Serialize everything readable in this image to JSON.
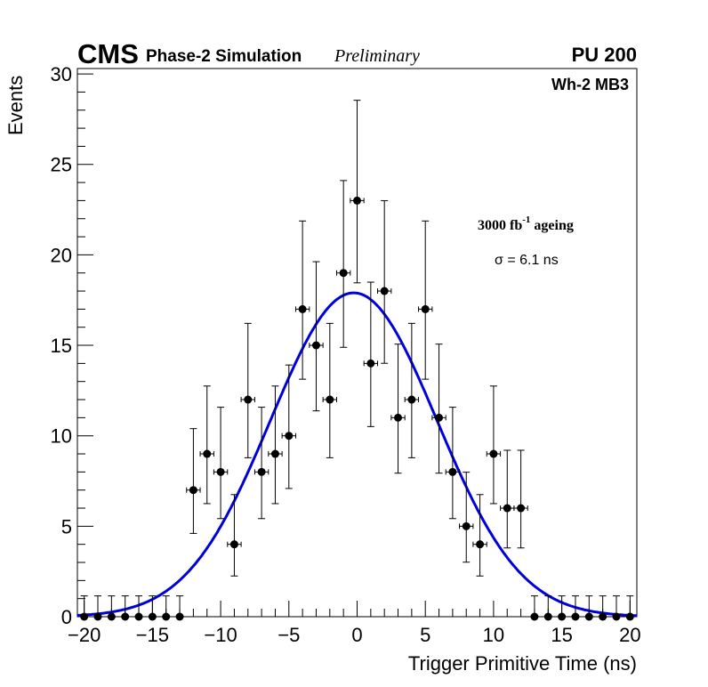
{
  "chart_data": {
    "type": "scatter",
    "title": "",
    "xlabel": "Trigger Primitive Time (ns)",
    "ylabel": "Events",
    "xlim": [
      -20.5,
      20.5
    ],
    "ylim": [
      0,
      30.3
    ],
    "x_ticks": [
      "−20",
      "−15",
      "−10",
      "−5",
      "0",
      "5",
      "10",
      "15",
      "20"
    ],
    "x_tick_values": [
      -20,
      -15,
      -10,
      -5,
      0,
      5,
      10,
      15,
      20
    ],
    "y_ticks": [
      "0",
      "5",
      "10",
      "15",
      "20",
      "25",
      "30"
    ],
    "y_tick_values": [
      0,
      5,
      10,
      15,
      20,
      25,
      30
    ],
    "grid": false,
    "series": [
      {
        "name": "data",
        "style": "points-with-errorbars",
        "color": "#000000",
        "x": [
          -20,
          -19,
          -18,
          -17,
          -16,
          -15,
          -14,
          -13,
          -12,
          -11,
          -10,
          -9,
          -8,
          -7,
          -6,
          -5,
          -4,
          -3,
          -2,
          -1,
          0,
          1,
          2,
          3,
          4,
          5,
          6,
          7,
          8,
          9,
          10,
          11,
          12,
          13,
          14,
          15,
          16,
          17,
          18,
          19,
          20
        ],
        "y": [
          0,
          0,
          0,
          0,
          0,
          0,
          0,
          0,
          7,
          9,
          8,
          4,
          12,
          8,
          9,
          10,
          17,
          15,
          12,
          19,
          23,
          14,
          18,
          11,
          12,
          17,
          11,
          8,
          5,
          4,
          9,
          6,
          6,
          0,
          0,
          0,
          0,
          0,
          0,
          0,
          0
        ]
      },
      {
        "name": "gaussian-fit",
        "style": "line",
        "color": "#0000dd",
        "amplitude": 17.9,
        "mean": -0.25,
        "sigma": 6.1,
        "x_range": [
          -20.5,
          20.5
        ]
      }
    ],
    "annotations": {
      "experiment": "CMS",
      "subtitle": "Phase-2 Simulation",
      "status": "Preliminary",
      "pileup": "PU 200",
      "region": "Wh-2 MB3",
      "ageing_main": "3000 fb",
      "ageing_sup": "-1",
      "ageing_tail": " ageing",
      "sigma_text": "σ = 6.1 ns"
    }
  }
}
